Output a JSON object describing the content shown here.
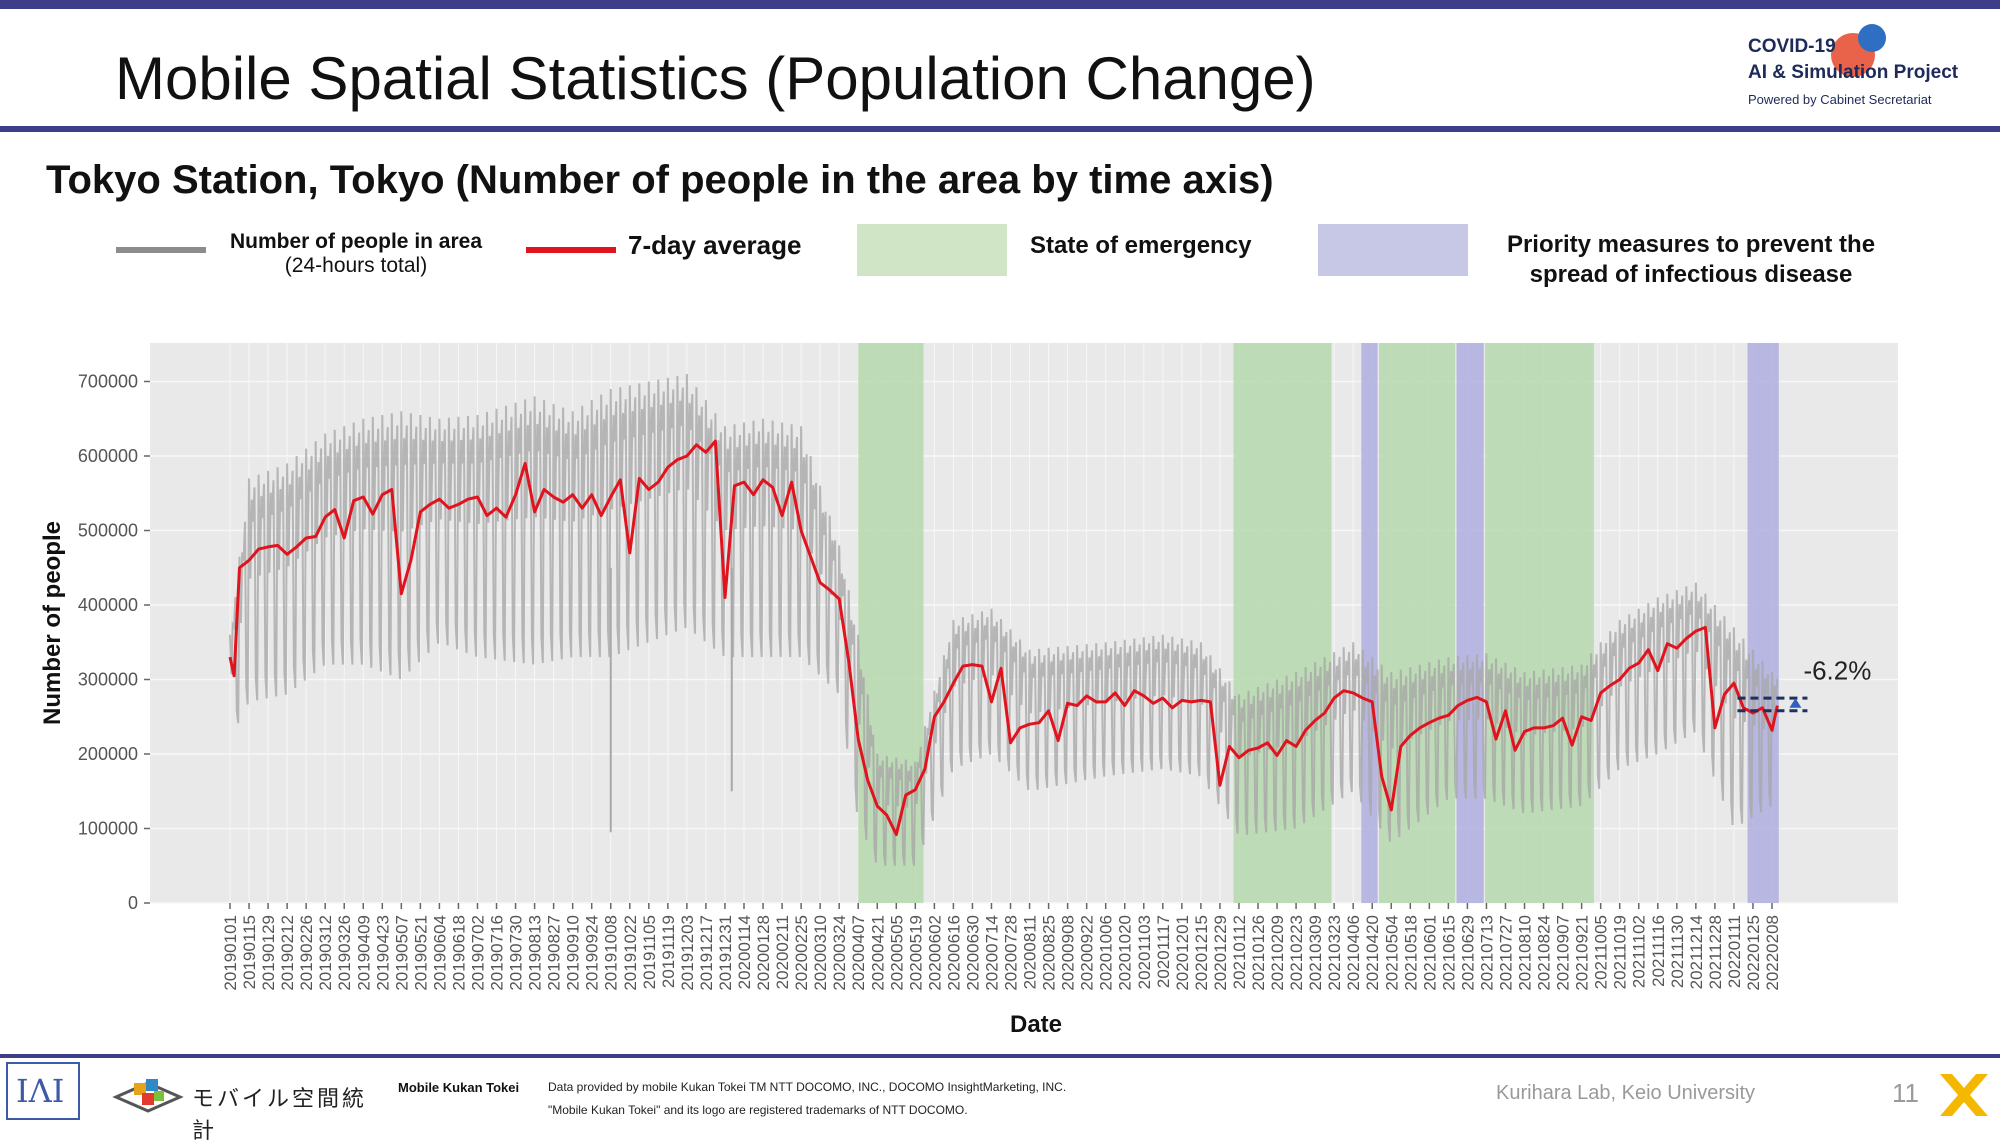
{
  "header": {
    "title": "Mobile Spatial Statistics (Population Change)",
    "logo_line1": "COVID-19",
    "logo_line2": "AI & Simulation Project",
    "logo_line3": "Powered by Cabinet Secretariat"
  },
  "chart_data": {
    "type": "line",
    "title": "Tokyo Station, Tokyo (Number of people in the area by time axis)",
    "xlabel": "Date",
    "ylabel": "Number of people",
    "ylim": [
      0,
      750000
    ],
    "yticks": [
      0,
      100000,
      200000,
      300000,
      400000,
      500000,
      600000,
      700000
    ],
    "x_ticks": [
      "20190101",
      "20190115",
      "20190129",
      "20190212",
      "20190226",
      "20190312",
      "20190326",
      "20190409",
      "20190423",
      "20190507",
      "20190521",
      "20190604",
      "20190618",
      "20190702",
      "20190716",
      "20190730",
      "20190813",
      "20190827",
      "20190910",
      "20190924",
      "20191008",
      "20191022",
      "20191105",
      "20191119",
      "20191203",
      "20191217",
      "20191231",
      "20200114",
      "20200128",
      "20200211",
      "20200225",
      "20200310",
      "20200324",
      "20200407",
      "20200421",
      "20200505",
      "20200519",
      "20200602",
      "20200616",
      "20200630",
      "20200714",
      "20200728",
      "20200811",
      "20200825",
      "20200908",
      "20200922",
      "20201006",
      "20201020",
      "20201103",
      "20201117",
      "20201201",
      "20201215",
      "20201229",
      "20210112",
      "20210126",
      "20210209",
      "20210223",
      "20210309",
      "20210323",
      "20210406",
      "20210420",
      "20210504",
      "20210518",
      "20210601",
      "20210615",
      "20210629",
      "20210713",
      "20210727",
      "20210810",
      "20210824",
      "20210907",
      "20210921",
      "20211005",
      "20211019",
      "20211102",
      "20211116",
      "20211130",
      "20211214",
      "20211228",
      "20220111",
      "20220125",
      "20220208"
    ],
    "grid": true,
    "legend": [
      {
        "label": "Number of people in area",
        "sublabel": "(24-hours total)",
        "color": "#8c8c8c"
      },
      {
        "label": "7-day average",
        "color": "#e0141e"
      },
      {
        "label": "State of emergency",
        "color": "#cfe5c6"
      },
      {
        "label": "Priority measures to prevent the spread of infectious disease",
        "color": "#c7c7e6"
      }
    ],
    "annotation": "-6.2%",
    "emergency_periods": [
      {
        "start": "20200407",
        "end": "20200525"
      },
      {
        "start": "20210108",
        "end": "20210321"
      },
      {
        "start": "20210425",
        "end": "20210620"
      },
      {
        "start": "20210712",
        "end": "20210930"
      }
    ],
    "priority_periods": [
      {
        "start": "20210412",
        "end": "20210424"
      },
      {
        "start": "20210621",
        "end": "20210711"
      },
      {
        "start": "20220121",
        "end": "20220213"
      }
    ],
    "series": [
      {
        "name": "7-day average",
        "color": "#e0141e",
        "points": [
          [
            "20190101",
            330000
          ],
          [
            "20190104",
            305000
          ],
          [
            "20190108",
            450000
          ],
          [
            "20190115",
            460000
          ],
          [
            "20190122",
            475000
          ],
          [
            "20190129",
            478000
          ],
          [
            "20190205",
            480000
          ],
          [
            "20190212",
            468000
          ],
          [
            "20190219",
            478000
          ],
          [
            "20190226",
            490000
          ],
          [
            "20190305",
            492000
          ],
          [
            "20190312",
            518000
          ],
          [
            "20190319",
            528000
          ],
          [
            "20190326",
            490000
          ],
          [
            "20190402",
            540000
          ],
          [
            "20190409",
            545000
          ],
          [
            "20190416",
            522000
          ],
          [
            "20190423",
            548000
          ],
          [
            "20190430",
            555000
          ],
          [
            "20190507",
            415000
          ],
          [
            "20190514",
            460000
          ],
          [
            "20190521",
            525000
          ],
          [
            "20190528",
            535000
          ],
          [
            "20190604",
            542000
          ],
          [
            "20190611",
            530000
          ],
          [
            "20190618",
            535000
          ],
          [
            "20190625",
            542000
          ],
          [
            "20190702",
            545000
          ],
          [
            "20190709",
            520000
          ],
          [
            "20190716",
            530000
          ],
          [
            "20190723",
            518000
          ],
          [
            "20190730",
            548000
          ],
          [
            "20190806",
            590000
          ],
          [
            "20190813",
            525000
          ],
          [
            "20190820",
            555000
          ],
          [
            "20190827",
            545000
          ],
          [
            "20190903",
            538000
          ],
          [
            "20190910",
            548000
          ],
          [
            "20190917",
            530000
          ],
          [
            "20190924",
            548000
          ],
          [
            "20191001",
            520000
          ],
          [
            "20191008",
            545000
          ],
          [
            "20191015",
            568000
          ],
          [
            "20191022",
            470000
          ],
          [
            "20191029",
            570000
          ],
          [
            "20191105",
            555000
          ],
          [
            "20191112",
            565000
          ],
          [
            "20191119",
            585000
          ],
          [
            "20191126",
            595000
          ],
          [
            "20191203",
            600000
          ],
          [
            "20191210",
            615000
          ],
          [
            "20191217",
            605000
          ],
          [
            "20191224",
            620000
          ],
          [
            "20191231",
            410000
          ],
          [
            "20200107",
            560000
          ],
          [
            "20200114",
            565000
          ],
          [
            "20200121",
            548000
          ],
          [
            "20200128",
            568000
          ],
          [
            "20200204",
            558000
          ],
          [
            "20200211",
            520000
          ],
          [
            "20200218",
            565000
          ],
          [
            "20200225",
            500000
          ],
          [
            "20200303",
            465000
          ],
          [
            "20200310",
            430000
          ],
          [
            "20200317",
            420000
          ],
          [
            "20200324",
            408000
          ],
          [
            "20200331",
            325000
          ],
          [
            "20200407",
            220000
          ],
          [
            "20200414",
            165000
          ],
          [
            "20200421",
            130000
          ],
          [
            "20200428",
            118000
          ],
          [
            "20200505",
            92000
          ],
          [
            "20200512",
            145000
          ],
          [
            "20200519",
            152000
          ],
          [
            "20200526",
            180000
          ],
          [
            "20200602",
            250000
          ],
          [
            "20200609",
            270000
          ],
          [
            "20200616",
            295000
          ],
          [
            "20200623",
            318000
          ],
          [
            "20200630",
            320000
          ],
          [
            "20200707",
            318000
          ],
          [
            "20200714",
            270000
          ],
          [
            "20200721",
            315000
          ],
          [
            "20200728",
            215000
          ],
          [
            "20200804",
            235000
          ],
          [
            "20200811",
            240000
          ],
          [
            "20200818",
            242000
          ],
          [
            "20200825",
            258000
          ],
          [
            "20200901",
            218000
          ],
          [
            "20200908",
            268000
          ],
          [
            "20200915",
            265000
          ],
          [
            "20200922",
            278000
          ],
          [
            "20200929",
            270000
          ],
          [
            "20201006",
            270000
          ],
          [
            "20201013",
            282000
          ],
          [
            "20201020",
            265000
          ],
          [
            "20201027",
            285000
          ],
          [
            "20201103",
            278000
          ],
          [
            "20201110",
            268000
          ],
          [
            "20201117",
            275000
          ],
          [
            "20201124",
            262000
          ],
          [
            "20201201",
            272000
          ],
          [
            "20201208",
            270000
          ],
          [
            "20201215",
            272000
          ],
          [
            "20201222",
            270000
          ],
          [
            "20201229",
            158000
          ],
          [
            "20210105",
            210000
          ],
          [
            "20210112",
            195000
          ],
          [
            "20210119",
            205000
          ],
          [
            "20210126",
            208000
          ],
          [
            "20210202",
            215000
          ],
          [
            "20210209",
            198000
          ],
          [
            "20210216",
            218000
          ],
          [
            "20210223",
            210000
          ],
          [
            "20210302",
            232000
          ],
          [
            "20210309",
            245000
          ],
          [
            "20210316",
            255000
          ],
          [
            "20210323",
            275000
          ],
          [
            "20210330",
            285000
          ],
          [
            "20210406",
            282000
          ],
          [
            "20210413",
            275000
          ],
          [
            "20210420",
            270000
          ],
          [
            "20210427",
            170000
          ],
          [
            "20210504",
            125000
          ],
          [
            "20210511",
            210000
          ],
          [
            "20210518",
            225000
          ],
          [
            "20210525",
            235000
          ],
          [
            "20210601",
            242000
          ],
          [
            "20210608",
            248000
          ],
          [
            "20210615",
            252000
          ],
          [
            "20210622",
            265000
          ],
          [
            "20210629",
            272000
          ],
          [
            "20210706",
            276000
          ],
          [
            "20210713",
            270000
          ],
          [
            "20210720",
            220000
          ],
          [
            "20210727",
            258000
          ],
          [
            "20210803",
            205000
          ],
          [
            "20210810",
            230000
          ],
          [
            "20210817",
            235000
          ],
          [
            "20210824",
            235000
          ],
          [
            "20210831",
            238000
          ],
          [
            "20210907",
            248000
          ],
          [
            "20210914",
            212000
          ],
          [
            "20210921",
            250000
          ],
          [
            "20210928",
            245000
          ],
          [
            "20211005",
            282000
          ],
          [
            "20211012",
            292000
          ],
          [
            "20211019",
            300000
          ],
          [
            "20211026",
            315000
          ],
          [
            "20211102",
            322000
          ],
          [
            "20211109",
            340000
          ],
          [
            "20211116",
            312000
          ],
          [
            "20211123",
            348000
          ],
          [
            "20211130",
            342000
          ],
          [
            "20211207",
            355000
          ],
          [
            "20211214",
            365000
          ],
          [
            "20211221",
            370000
          ],
          [
            "20211228",
            235000
          ],
          [
            "20220104",
            280000
          ],
          [
            "20220111",
            295000
          ],
          [
            "20220118",
            262000
          ],
          [
            "20220125",
            255000
          ],
          [
            "20220201",
            262000
          ],
          [
            "20220208",
            232000
          ],
          [
            "20220212",
            265000
          ]
        ]
      },
      {
        "name": "Number of people in area",
        "sublabel": "(24-hours total)",
        "color": "#a8a8a8",
        "envelope": [
          [
            "20190101",
            220000,
            360000
          ],
          [
            "20190115",
            270000,
            570000
          ],
          [
            "20190212",
            280000,
            590000
          ],
          [
            "20190312",
            320000,
            630000
          ],
          [
            "20190409",
            320000,
            650000
          ],
          [
            "20190507",
            300000,
            660000
          ],
          [
            "20190604",
            350000,
            650000
          ],
          [
            "20190702",
            330000,
            655000
          ],
          [
            "20190813",
            320000,
            680000
          ],
          [
            "20190910",
            330000,
            660000
          ],
          [
            "20191008",
            330000,
            690000
          ],
          [
            "20191105",
            350000,
            700000
          ],
          [
            "20191203",
            370000,
            710000
          ],
          [
            "20191231",
            330000,
            640000
          ],
          [
            "20200128",
            330000,
            650000
          ],
          [
            "20200225",
            330000,
            640000
          ],
          [
            "20200324",
            280000,
            480000
          ],
          [
            "20200407",
            110000,
            360000
          ],
          [
            "20200421",
            50000,
            200000
          ],
          [
            "20200519",
            50000,
            190000
          ],
          [
            "20200616",
            180000,
            380000
          ],
          [
            "20200714",
            200000,
            395000
          ],
          [
            "20200811",
            150000,
            340000
          ],
          [
            "20201006",
            170000,
            350000
          ],
          [
            "20201117",
            180000,
            360000
          ],
          [
            "20201215",
            170000,
            350000
          ],
          [
            "20210112",
            90000,
            280000
          ],
          [
            "20210223",
            100000,
            310000
          ],
          [
            "20210406",
            150000,
            350000
          ],
          [
            "20210504",
            80000,
            310000
          ],
          [
            "20210615",
            140000,
            330000
          ],
          [
            "20210713",
            140000,
            335000
          ],
          [
            "20210810",
            120000,
            310000
          ],
          [
            "20210921",
            130000,
            320000
          ],
          [
            "20211019",
            180000,
            380000
          ],
          [
            "20211116",
            200000,
            410000
          ],
          [
            "20211214",
            230000,
            430000
          ],
          [
            "20220111",
            100000,
            370000
          ],
          [
            "20220208",
            130000,
            310000
          ]
        ],
        "outliers": [
          [
            "20191008",
            95000
          ],
          [
            "20200105",
            150000
          ]
        ]
      }
    ]
  },
  "footer": {
    "brand_jp": "モバイル空間統計",
    "mobile_kukan_tokei": "Mobile Kukan Tokei",
    "disclaimer1": "Data provided by mobile Kukan Tokei TM NTT DOCOMO, INC., DOCOMO InsightMarketing, INC.",
    "disclaimer2": "\"Mobile Kukan Tokei\" and its logo are registered trademarks of NTT DOCOMO.",
    "lab": "Kurihara Lab, Keio University",
    "page_number": "11"
  }
}
